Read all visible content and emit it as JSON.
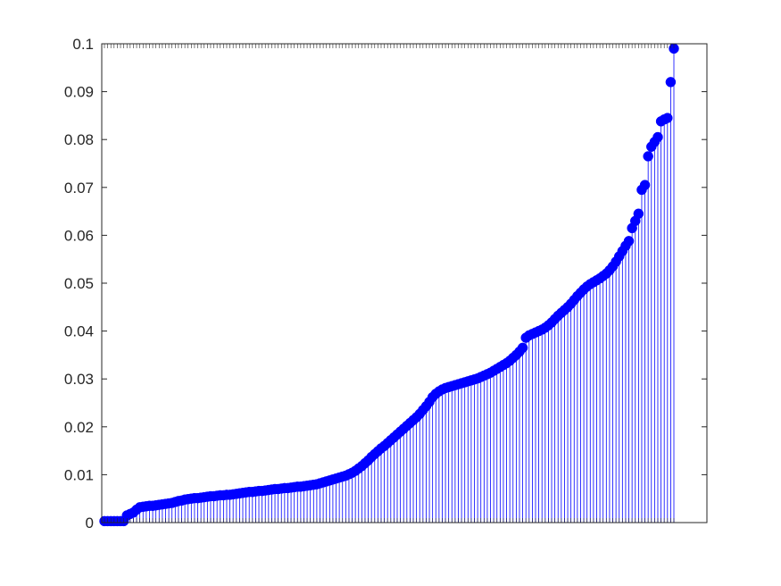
{
  "chart_data": {
    "type": "stem",
    "title": "",
    "xlabel": "",
    "ylabel": "",
    "ylim": [
      0,
      0.1
    ],
    "yticks": [
      0,
      0.01,
      0.02,
      0.03,
      0.04,
      0.05,
      0.06,
      0.07,
      0.08,
      0.09,
      0.1
    ],
    "yticklabels": [
      "0",
      "0.01",
      "0.02",
      "0.03",
      "0.04",
      "0.05",
      "0.06",
      "0.07",
      "0.08",
      "0.09",
      "0.1"
    ],
    "xticklabels_note": "",
    "grid": false,
    "box": true,
    "colors": {
      "stem": "#0000ff",
      "marker": "#0000ff",
      "axis": "#262626",
      "tick": "#262626"
    },
    "values": [
      0.0003,
      0.0003,
      0.0003,
      0.0003,
      0.0003,
      0.0003,
      0.0003,
      0.0015,
      0.0018,
      0.0021,
      0.0027,
      0.0032,
      0.0033,
      0.0034,
      0.0035,
      0.0035,
      0.0036,
      0.0037,
      0.0038,
      0.0039,
      0.004,
      0.0041,
      0.0043,
      0.0045,
      0.0046,
      0.0048,
      0.0049,
      0.005,
      0.0051,
      0.0051,
      0.0052,
      0.0053,
      0.0054,
      0.0055,
      0.0055,
      0.0056,
      0.0057,
      0.0057,
      0.0058,
      0.0058,
      0.0059,
      0.006,
      0.0061,
      0.0062,
      0.0063,
      0.0064,
      0.0064,
      0.0065,
      0.0066,
      0.0066,
      0.0067,
      0.0068,
      0.0069,
      0.007,
      0.007,
      0.0071,
      0.0072,
      0.0072,
      0.0073,
      0.0074,
      0.0075,
      0.0075,
      0.0076,
      0.0077,
      0.0078,
      0.0079,
      0.008,
      0.0082,
      0.0084,
      0.0086,
      0.0088,
      0.009,
      0.0092,
      0.0094,
      0.0096,
      0.0098,
      0.0101,
      0.0104,
      0.0108,
      0.0113,
      0.0118,
      0.0124,
      0.013,
      0.0137,
      0.0143,
      0.0149,
      0.0155,
      0.016,
      0.0166,
      0.0172,
      0.0178,
      0.0184,
      0.019,
      0.0196,
      0.0202,
      0.0208,
      0.0214,
      0.022,
      0.0227,
      0.0235,
      0.0243,
      0.0252,
      0.0262,
      0.0269,
      0.0274,
      0.0278,
      0.0281,
      0.0283,
      0.0285,
      0.0287,
      0.0289,
      0.0291,
      0.0293,
      0.0295,
      0.0297,
      0.0299,
      0.0301,
      0.0304,
      0.0307,
      0.031,
      0.0313,
      0.0317,
      0.0321,
      0.0325,
      0.0329,
      0.0333,
      0.0338,
      0.0344,
      0.035,
      0.0357,
      0.0365,
      0.0386,
      0.0391,
      0.0394,
      0.0397,
      0.04,
      0.0403,
      0.0407,
      0.0412,
      0.0418,
      0.0425,
      0.0432,
      0.0438,
      0.0444,
      0.045,
      0.0457,
      0.0465,
      0.0473,
      0.048,
      0.0487,
      0.0493,
      0.0498,
      0.0502,
      0.0506,
      0.051,
      0.0515,
      0.052,
      0.0527,
      0.0535,
      0.0545,
      0.0556,
      0.0567,
      0.0578,
      0.0588,
      0.0615,
      0.063,
      0.0645,
      0.0695,
      0.0705,
      0.0765,
      0.0785,
      0.0795,
      0.0805,
      0.0838,
      0.0842,
      0.0845,
      0.092,
      0.099
    ]
  }
}
